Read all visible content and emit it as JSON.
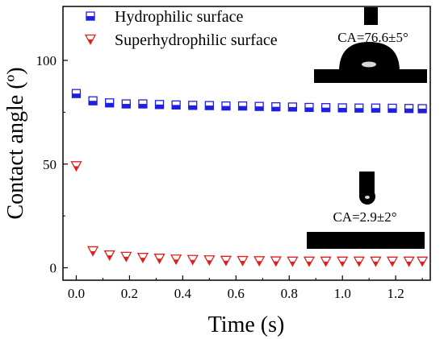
{
  "chart_data": {
    "type": "scatter",
    "xlabel": "Time (s)",
    "ylabel": "Contact angle (º)",
    "xlim": [
      -0.05,
      1.33
    ],
    "ylim": [
      -6,
      126
    ],
    "x_ticks": [
      0.0,
      0.2,
      0.4,
      0.6,
      0.8,
      1.0,
      1.2
    ],
    "x_tick_labels": [
      "0.0",
      "0.2",
      "0.4",
      "0.6",
      "0.8",
      "1.0",
      "1.2"
    ],
    "y_ticks": [
      0,
      50,
      100
    ],
    "y_tick_labels": [
      "0",
      "50",
      "100"
    ],
    "grid": false,
    "legend": "top-left",
    "series": [
      {
        "name": "Hydrophilic surface",
        "marker": "half-filled-square",
        "color": "#1f1fe0",
        "x": [
          0.0,
          0.0625,
          0.125,
          0.1875,
          0.25,
          0.3125,
          0.375,
          0.4375,
          0.5,
          0.5625,
          0.625,
          0.6875,
          0.75,
          0.8125,
          0.875,
          0.9375,
          1.0,
          1.0625,
          1.125,
          1.1875,
          1.25,
          1.3
        ],
        "y": [
          84,
          80.5,
          79.5,
          79,
          79,
          78.7,
          78.5,
          78.3,
          78.2,
          78,
          78,
          77.8,
          77.6,
          77.5,
          77.3,
          77.2,
          77.1,
          77,
          77,
          76.9,
          76.8,
          76.7
        ]
      },
      {
        "name": "Superhydrophilic surface",
        "marker": "half-filled-triangle-down",
        "color": "#e01f1f",
        "x": [
          0.0,
          0.0625,
          0.125,
          0.1875,
          0.25,
          0.3125,
          0.375,
          0.4375,
          0.5,
          0.5625,
          0.625,
          0.6875,
          0.75,
          0.8125,
          0.875,
          0.9375,
          1.0,
          1.0625,
          1.125,
          1.1875,
          1.25,
          1.3
        ],
        "y": [
          49,
          8,
          6,
          5.3,
          4.8,
          4.4,
          4,
          3.8,
          3.6,
          3.4,
          3.3,
          3.2,
          3.1,
          3,
          3,
          3,
          3,
          3,
          3,
          3,
          3,
          3
        ]
      }
    ],
    "insets": [
      {
        "label": "CA=76.6±5°"
      },
      {
        "label": "CA=2.9±2°"
      }
    ]
  }
}
